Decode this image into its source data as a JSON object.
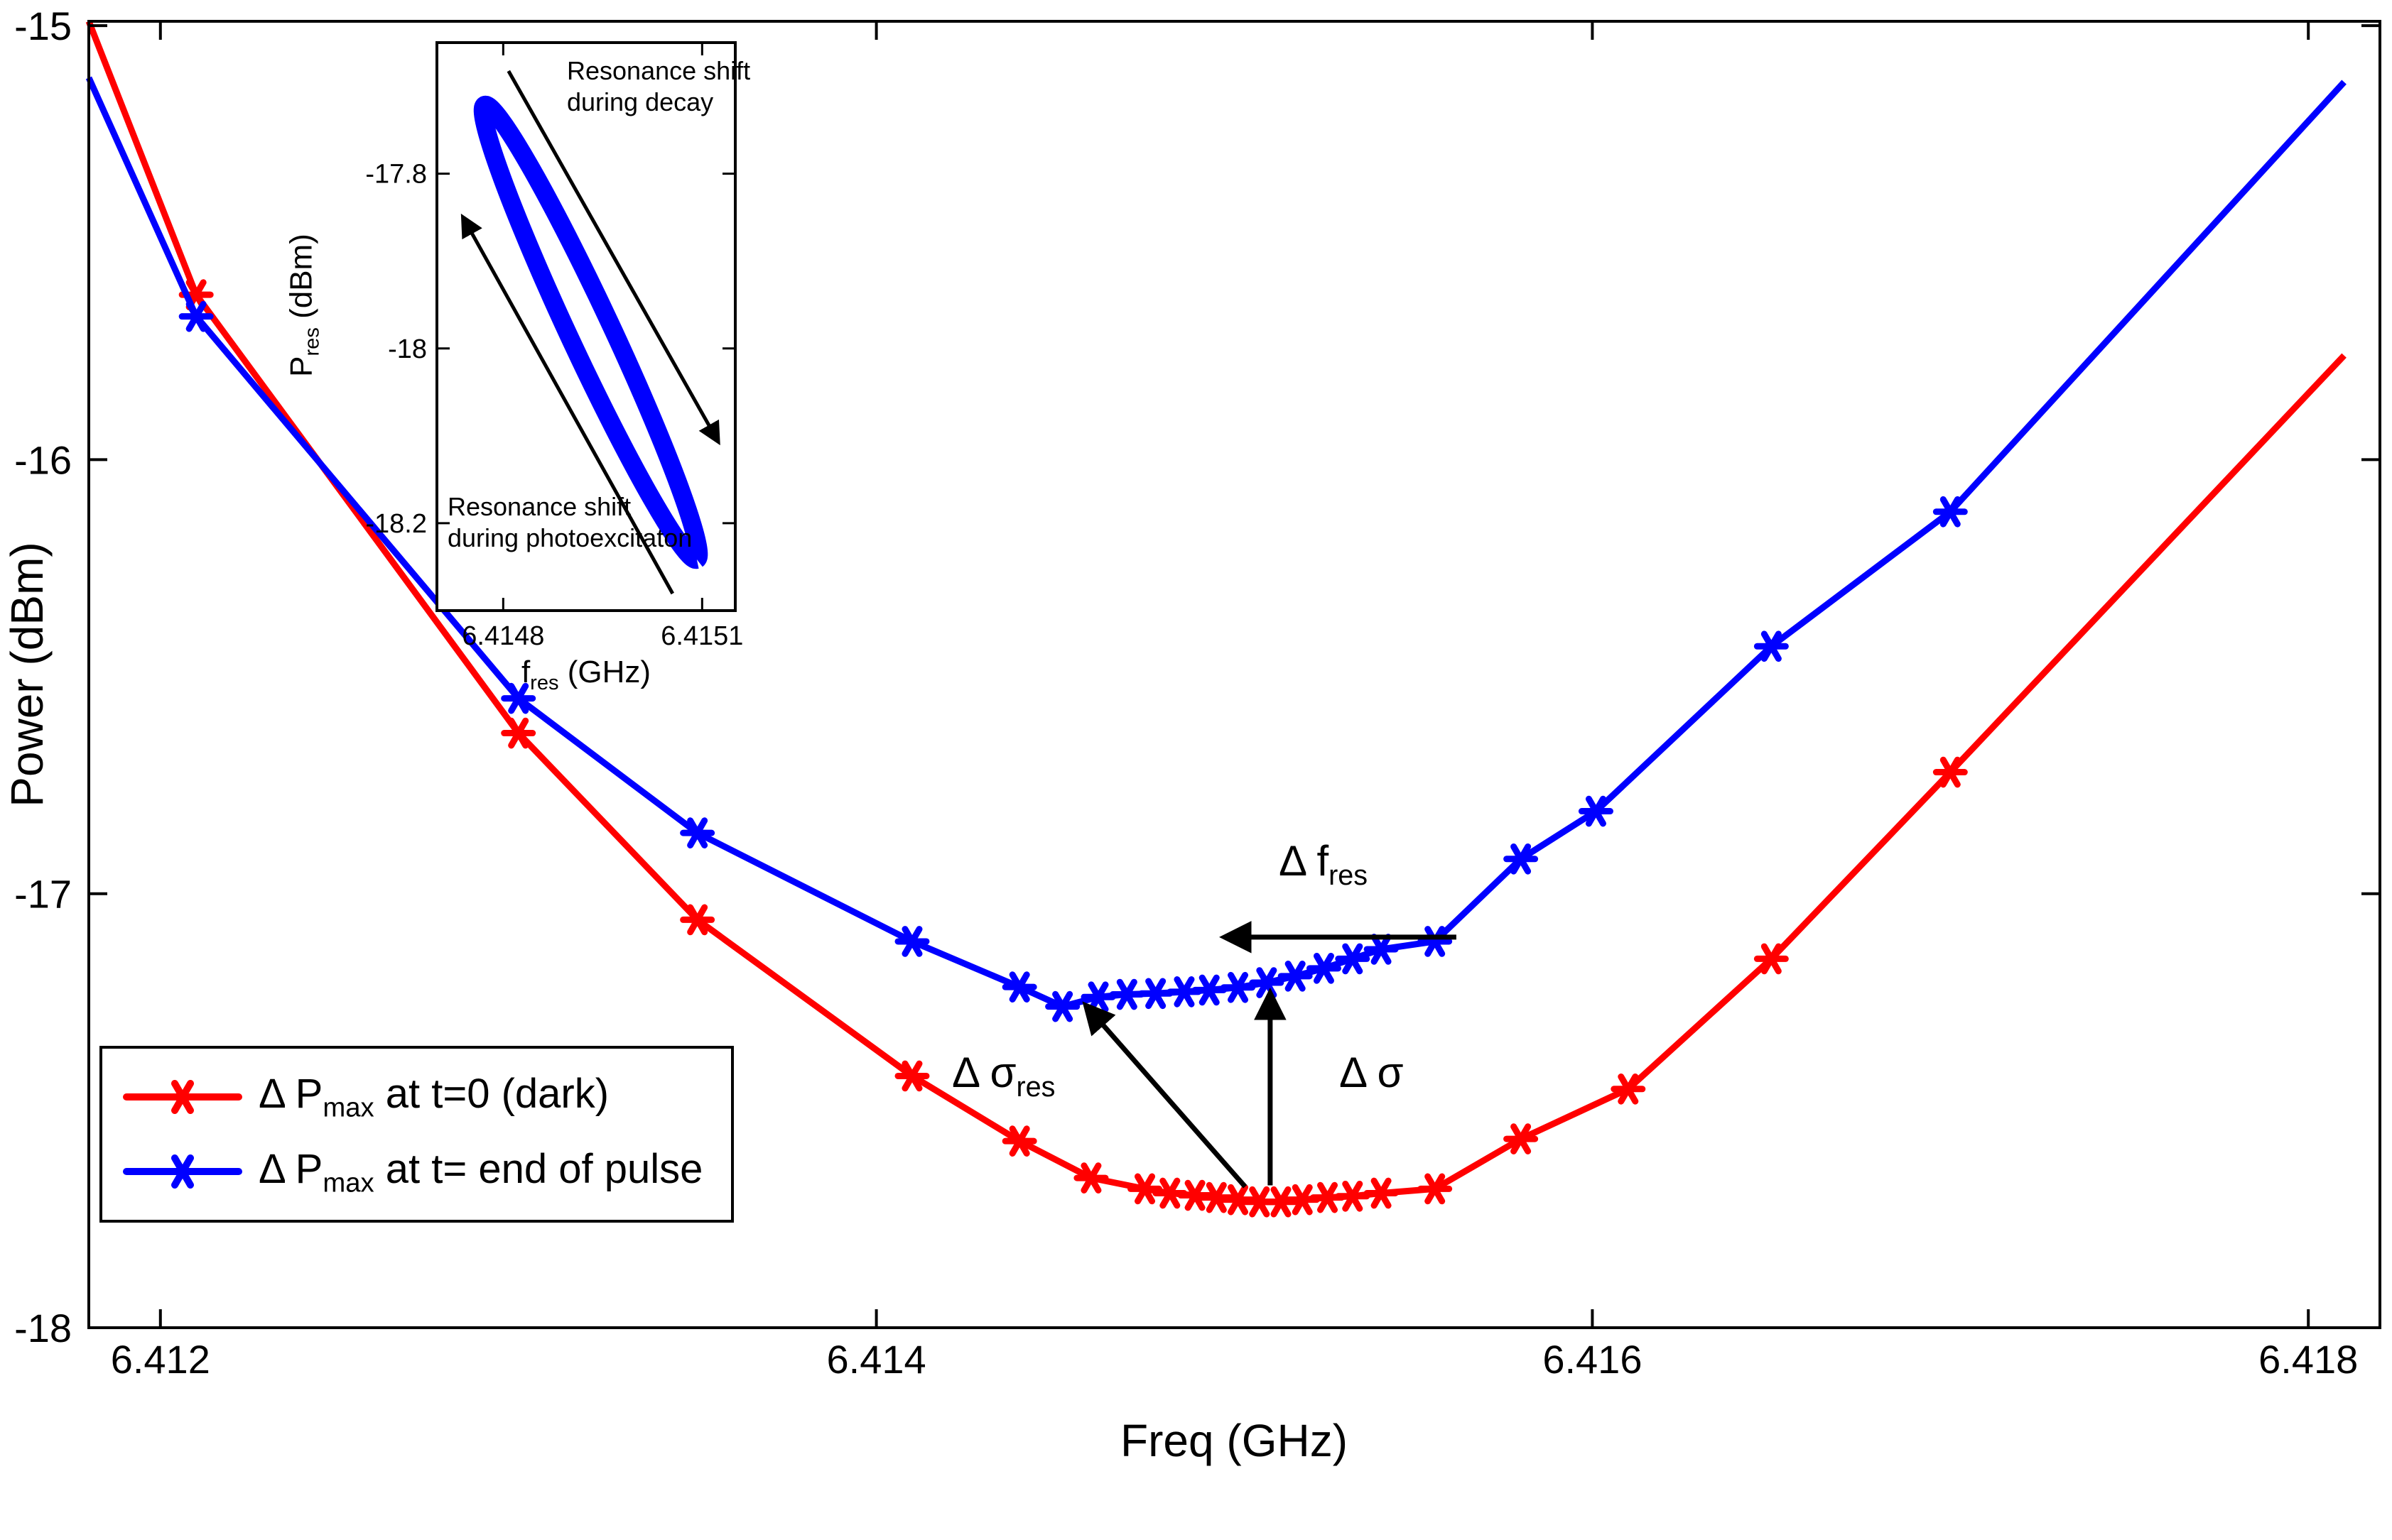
{
  "figure": {
    "background": "#ffffff"
  },
  "colors": {
    "red": "#ff0000",
    "blue": "#0000ff",
    "axis": "#000000"
  },
  "chart_data": [
    {
      "id": "main",
      "type": "line",
      "title": "",
      "xlabel": "Freq (GHz)",
      "ylabel": "Power (dBm)",
      "xlim": [
        6.4118,
        6.4182
      ],
      "ylim": [
        -18,
        -14.99
      ],
      "grid": false,
      "legend_position": "southwest",
      "xticks": [
        6.412,
        6.414,
        6.416,
        6.418
      ],
      "xtick_labels": [
        "6.412",
        "6.414",
        "6.416",
        "6.418"
      ],
      "yticks": [
        -18,
        -17,
        -16,
        -15
      ],
      "ytick_labels": [
        "-18",
        "-17",
        "-16",
        "-15"
      ],
      "series": [
        {
          "name_pre": "Δ P",
          "name_sub": "max",
          "name_post": " at t=0 (dark)",
          "color": "#ff0000",
          "x": [
            6.4118,
            6.4121,
            6.413,
            6.4135,
            6.4141,
            6.4144,
            6.4146,
            6.41475,
            6.41482,
            6.41489,
            6.41495,
            6.41501,
            6.41507,
            6.41513,
            6.41519,
            6.41526,
            6.41533,
            6.41541,
            6.41556,
            6.4158,
            6.4161,
            6.4165,
            6.417,
            6.4181
          ],
          "y": [
            -14.99,
            -15.62,
            -16.63,
            -17.06,
            -17.42,
            -17.57,
            -17.655,
            -17.68,
            -17.69,
            -17.695,
            -17.7,
            -17.705,
            -17.71,
            -17.71,
            -17.705,
            -17.7,
            -17.697,
            -17.69,
            -17.68,
            -17.565,
            -17.45,
            -17.15,
            -16.72,
            -15.76
          ]
        },
        {
          "name_pre": "Δ P",
          "name_sub": "max",
          "name_post": " at t= end of pulse",
          "color": "#0000ff",
          "x": [
            6.4118,
            6.4121,
            6.413,
            6.4135,
            6.4141,
            6.4144,
            6.41452,
            6.41462,
            6.4147,
            6.41478,
            6.41486,
            6.41493,
            6.41501,
            6.41509,
            6.41517,
            6.41525,
            6.41533,
            6.41541,
            6.41556,
            6.4158,
            6.41601,
            6.4165,
            6.417,
            6.4181
          ],
          "y": [
            -15.12,
            -15.67,
            -16.55,
            -16.86,
            -17.11,
            -17.215,
            -17.26,
            -17.238,
            -17.232,
            -17.23,
            -17.226,
            -17.222,
            -17.216,
            -17.205,
            -17.19,
            -17.172,
            -17.15,
            -17.128,
            -17.11,
            -16.92,
            -16.81,
            -16.43,
            -16.12,
            -15.13
          ]
        }
      ],
      "annotations": {
        "delta_f": {
          "pre": "Δ f",
          "sub": "res"
        },
        "delta_sigma_res": {
          "pre": "Δ σ",
          "sub": "res"
        },
        "delta_sigma": {
          "pre": "Δ σ",
          "sub": ""
        }
      },
      "arrows": [
        {
          "name": "delta-f-res-arrow",
          "from": [
            6.41562,
            -17.1
          ],
          "to": [
            6.41498,
            -17.1
          ]
        },
        {
          "name": "delta-sigma-res-arrow",
          "from": [
            6.41503,
            -17.675
          ],
          "to": [
            6.41459,
            -17.262
          ]
        },
        {
          "name": "delta-sigma-arrow",
          "from": [
            6.4151,
            -17.672
          ],
          "to": [
            6.4151,
            -17.235
          ]
        }
      ]
    },
    {
      "id": "inset",
      "type": "scatter",
      "xlabel_pre": "f",
      "xlabel_sub": "res",
      "xlabel_post": " (GHz)",
      "ylabel_pre": "P",
      "ylabel_sub": "res",
      "ylabel_post": " (dBm)",
      "xlim": [
        6.4147,
        6.41515
      ],
      "ylim": [
        -18.3,
        -17.65
      ],
      "grid": false,
      "xticks": [
        6.4148,
        6.4151
      ],
      "xtick_labels": [
        "6.4148",
        "6.4151"
      ],
      "yticks": [
        -18.2,
        -18,
        -17.8
      ],
      "ytick_labels": [
        "-18.2",
        "-18",
        "-17.8"
      ],
      "loop": {
        "description": "closed hysteresis loop of resonance power vs resonance frequency",
        "color": "#0000ff",
        "center": [
          6.414932,
          -17.9815
        ],
        "half_major": [
          0.00016,
          -0.26
        ],
        "half_minor": [
          -2.91e-05,
          -0.0103
        ],
        "points": 160
      },
      "annotations": {
        "decay": {
          "line1": "Resonance shift",
          "line2": "during decay"
        },
        "photo": {
          "line1": "Resonance shift",
          "line2": "during photoexcitaton"
        }
      },
      "arrows": [
        {
          "name": "decay-shift-arrow",
          "from": [
            0.24,
            0.05
          ],
          "to": [
            0.94,
            0.7
          ]
        },
        {
          "name": "photoexcitation-shift-arrow",
          "from": [
            0.79,
            0.97
          ],
          "to": [
            0.09,
            0.31
          ]
        }
      ]
    }
  ]
}
